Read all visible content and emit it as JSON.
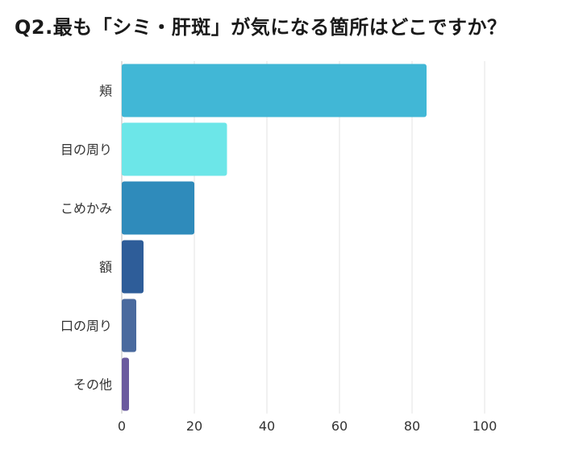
{
  "chart_data": {
    "type": "bar",
    "orientation": "horizontal",
    "title": "Q2.最も「シミ・肝斑」が気になる箇所はどこですか？",
    "categories": [
      "頬",
      "目の周り",
      "こめかみ",
      "額",
      "口の周り",
      "その他"
    ],
    "values": [
      84,
      29,
      20,
      6,
      4,
      2
    ],
    "colors": [
      "#41B7D6",
      "#6CE6E8",
      "#2F8BBB",
      "#2E5D99",
      "#4A6A9E",
      "#6A5A9E"
    ],
    "xlim": [
      0,
      100
    ],
    "xticks": [
      0,
      20,
      40,
      60,
      80,
      100
    ],
    "grid": true
  }
}
